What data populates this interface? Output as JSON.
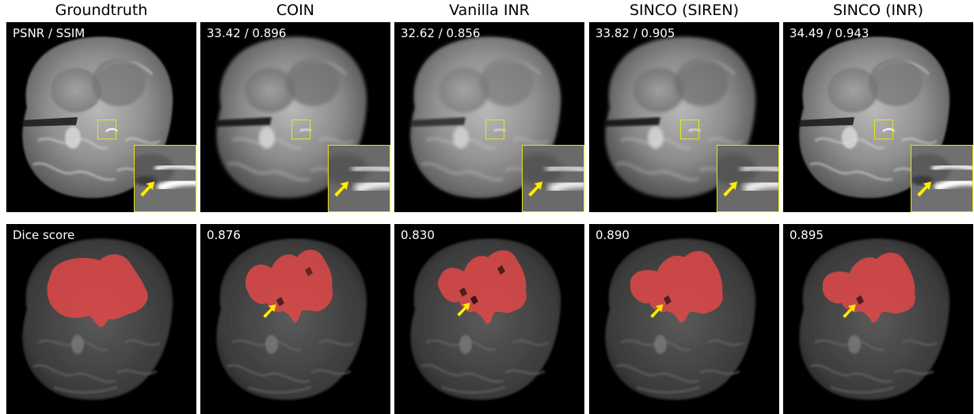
{
  "columns": [
    {
      "title": "Groundtruth",
      "recon_metric": "PSNR / SSIM",
      "seg_metric": "Dice score"
    },
    {
      "title": "COIN",
      "recon_metric": "33.42 / 0.896",
      "seg_metric": "0.876"
    },
    {
      "title": "Vanilla INR",
      "recon_metric": "32.62 / 0.856",
      "seg_metric": "0.830"
    },
    {
      "title": "SINCO (SIREN)",
      "recon_metric": "33.82 / 0.905",
      "seg_metric": "0.890"
    },
    {
      "title": "SINCO (INR)",
      "recon_metric": "34.49 / 0.943",
      "seg_metric": "0.895"
    }
  ],
  "colors": {
    "zoom_box": "#e6e61a",
    "arrow": "#ffee00",
    "tumor_overlay": "#e04848",
    "background": "#000000"
  }
}
